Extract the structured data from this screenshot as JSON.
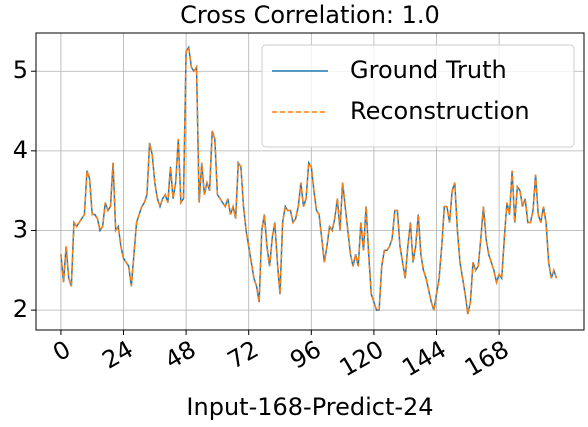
{
  "chart_data": {
    "type": "line",
    "title": "Cross Correlation: 1.0",
    "xlabel": "Input-168-Predict-24",
    "x": [
      0,
      1,
      2,
      3,
      4,
      5,
      6,
      7,
      8,
      9,
      10,
      11,
      12,
      13,
      14,
      15,
      16,
      17,
      18,
      19,
      20,
      21,
      22,
      23,
      24,
      25,
      26,
      27,
      28,
      29,
      30,
      31,
      32,
      33,
      34,
      35,
      36,
      37,
      38,
      39,
      40,
      41,
      42,
      43,
      44,
      45,
      46,
      47,
      48,
      49,
      50,
      51,
      52,
      53,
      54,
      55,
      56,
      57,
      58,
      59,
      60,
      61,
      62,
      63,
      64,
      65,
      66,
      67,
      68,
      69,
      70,
      71,
      72,
      73,
      74,
      75,
      76,
      77,
      78,
      79,
      80,
      81,
      82,
      83,
      84,
      85,
      86,
      87,
      88,
      89,
      90,
      91,
      92,
      93,
      94,
      95,
      96,
      97,
      98,
      99,
      100,
      101,
      102,
      103,
      104,
      105,
      106,
      107,
      108,
      109,
      110,
      111,
      112,
      113,
      114,
      115,
      116,
      117,
      118,
      119,
      120,
      121,
      122,
      123,
      124,
      125,
      126,
      127,
      128,
      129,
      130,
      131,
      132,
      133,
      134,
      135,
      136,
      137,
      138,
      139,
      140,
      141,
      142,
      143,
      144,
      145,
      146,
      147,
      148,
      149,
      150,
      151,
      152,
      153,
      154,
      155,
      156,
      157,
      158,
      159,
      160,
      161,
      162,
      163,
      164,
      165,
      166,
      167,
      168,
      169,
      170,
      171,
      172,
      173,
      174,
      175,
      176,
      177,
      178,
      179,
      180,
      181,
      182,
      183,
      184,
      185,
      186,
      187,
      188,
      189,
      190
    ],
    "series": [
      {
        "name": "Ground Truth",
        "color": "#1f77b4",
        "dash": false,
        "values": [
          2.7,
          2.35,
          2.8,
          2.4,
          2.3,
          3.1,
          3.05,
          3.1,
          3.15,
          3.2,
          3.75,
          3.65,
          3.2,
          3.2,
          3.15,
          3.0,
          3.05,
          3.35,
          3.25,
          3.3,
          3.85,
          3.0,
          3.05,
          2.8,
          2.65,
          2.6,
          2.55,
          2.3,
          2.7,
          3.1,
          3.2,
          3.3,
          3.35,
          3.45,
          4.1,
          3.95,
          3.6,
          3.4,
          3.3,
          3.4,
          3.45,
          3.35,
          3.8,
          3.4,
          3.6,
          4.15,
          3.35,
          3.4,
          5.25,
          5.3,
          5.05,
          5.0,
          5.05,
          3.35,
          3.85,
          3.45,
          3.6,
          3.5,
          4.25,
          4.15,
          3.45,
          3.4,
          3.35,
          3.3,
          3.4,
          3.2,
          3.3,
          3.15,
          3.85,
          3.8,
          3.3,
          3.0,
          2.8,
          2.6,
          2.4,
          2.3,
          2.1,
          3.0,
          3.2,
          2.8,
          2.55,
          2.9,
          3.1,
          2.6,
          2.2,
          3.1,
          3.3,
          3.25,
          3.25,
          3.1,
          3.15,
          3.3,
          3.6,
          3.3,
          3.4,
          3.85,
          3.8,
          3.5,
          3.25,
          3.2,
          2.9,
          2.6,
          2.8,
          3.05,
          3.0,
          3.15,
          3.4,
          3.0,
          3.6,
          3.3,
          3.0,
          2.7,
          2.55,
          2.7,
          2.55,
          3.1,
          2.75,
          3.3,
          2.7,
          2.2,
          2.1,
          2.0,
          2.0,
          2.55,
          2.75,
          2.75,
          2.8,
          2.9,
          3.25,
          3.25,
          2.8,
          2.6,
          2.4,
          2.8,
          3.1,
          2.6,
          2.8,
          3.2,
          2.7,
          2.5,
          2.4,
          2.25,
          2.1,
          2.0,
          2.2,
          2.4,
          2.8,
          3.3,
          3.3,
          3.1,
          3.5,
          3.6,
          3.0,
          2.6,
          2.4,
          2.2,
          1.95,
          2.1,
          2.6,
          2.5,
          2.55,
          2.9,
          3.3,
          2.9,
          2.7,
          2.6,
          2.5,
          2.35,
          2.45,
          2.4,
          2.9,
          3.35,
          3.2,
          3.75,
          3.1,
          3.55,
          3.5,
          3.3,
          3.4,
          3.1,
          3.1,
          3.25,
          3.7,
          3.2,
          3.1,
          3.3,
          3.1,
          2.6,
          2.4,
          2.5,
          2.4
        ]
      },
      {
        "name": "Reconstruction",
        "color": "#ff7f0e",
        "dash": true,
        "values": [
          2.7,
          2.35,
          2.8,
          2.4,
          2.3,
          3.1,
          3.05,
          3.1,
          3.15,
          3.2,
          3.75,
          3.65,
          3.2,
          3.2,
          3.15,
          3.0,
          3.05,
          3.35,
          3.25,
          3.3,
          3.85,
          3.0,
          3.05,
          2.8,
          2.65,
          2.6,
          2.55,
          2.3,
          2.7,
          3.1,
          3.2,
          3.3,
          3.35,
          3.45,
          4.1,
          3.95,
          3.6,
          3.4,
          3.3,
          3.4,
          3.45,
          3.35,
          3.8,
          3.4,
          3.6,
          4.15,
          3.35,
          3.4,
          5.25,
          5.3,
          5.05,
          5.0,
          5.05,
          3.35,
          3.85,
          3.45,
          3.6,
          3.5,
          4.25,
          4.15,
          3.45,
          3.4,
          3.35,
          3.3,
          3.4,
          3.2,
          3.3,
          3.15,
          3.85,
          3.8,
          3.3,
          3.0,
          2.8,
          2.6,
          2.4,
          2.3,
          2.1,
          3.0,
          3.2,
          2.8,
          2.55,
          2.9,
          3.1,
          2.6,
          2.2,
          3.1,
          3.3,
          3.25,
          3.25,
          3.1,
          3.15,
          3.3,
          3.6,
          3.3,
          3.4,
          3.85,
          3.8,
          3.5,
          3.25,
          3.2,
          2.9,
          2.6,
          2.8,
          3.05,
          3.0,
          3.15,
          3.4,
          3.0,
          3.6,
          3.3,
          3.0,
          2.7,
          2.55,
          2.7,
          2.55,
          3.1,
          2.75,
          3.3,
          2.7,
          2.2,
          2.1,
          2.0,
          2.0,
          2.55,
          2.75,
          2.75,
          2.8,
          2.9,
          3.25,
          3.25,
          2.8,
          2.6,
          2.4,
          2.8,
          3.1,
          2.6,
          2.8,
          3.2,
          2.7,
          2.5,
          2.4,
          2.25,
          2.1,
          2.0,
          2.2,
          2.4,
          2.8,
          3.3,
          3.3,
          3.1,
          3.5,
          3.6,
          3.0,
          2.6,
          2.4,
          2.2,
          1.95,
          2.1,
          2.6,
          2.5,
          2.55,
          2.9,
          3.3,
          2.9,
          2.7,
          2.6,
          2.5,
          2.35,
          2.45,
          2.4,
          2.9,
          3.35,
          3.2,
          3.75,
          3.1,
          3.55,
          3.5,
          3.3,
          3.4,
          3.1,
          3.1,
          3.25,
          3.7,
          3.2,
          3.1,
          3.3,
          3.1,
          2.6,
          2.4,
          2.5,
          2.4
        ]
      }
    ],
    "xlim": [
      -9.55,
      200.55
    ],
    "xticks": [
      0,
      24,
      48,
      72,
      96,
      120,
      144,
      168
    ],
    "ylim": [
      1.75,
      5.48
    ],
    "yticks": [
      2,
      3,
      4,
      5
    ],
    "grid": true,
    "legend": "upper right"
  }
}
